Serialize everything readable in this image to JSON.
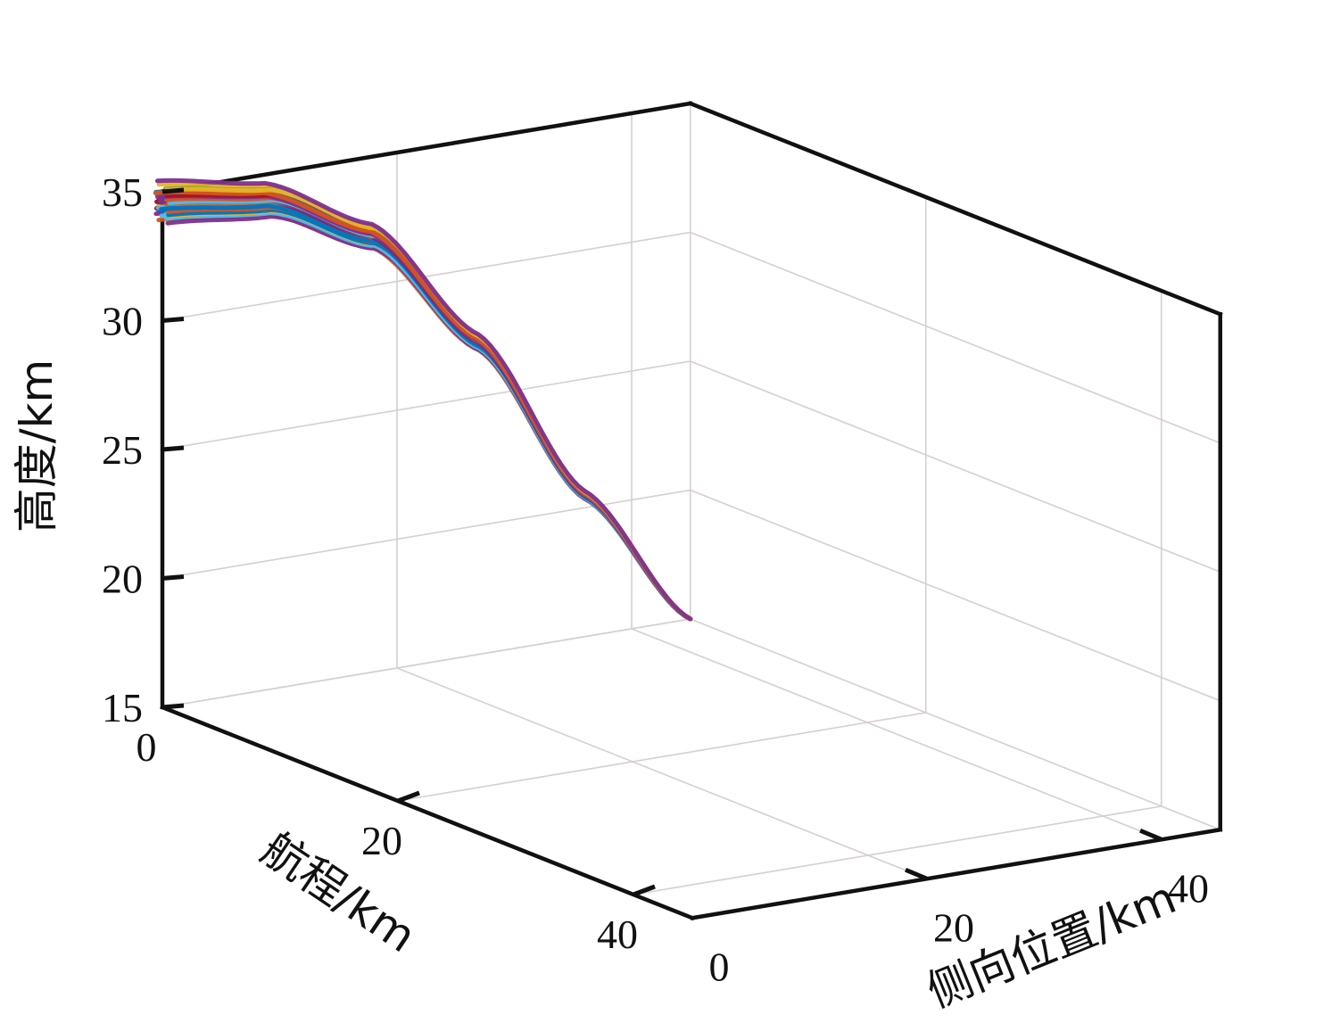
{
  "chart_data": {
    "type": "line",
    "projection": "3d",
    "title": "",
    "xlabel": "航程/km",
    "ylabel": "侧向位置/km",
    "zlabel": "高度/km",
    "xlim": [
      0,
      45
    ],
    "ylim": [
      0,
      45
    ],
    "zlim": [
      15,
      35
    ],
    "x_ticks": [
      "0",
      "20",
      "40"
    ],
    "y_ticks": [
      "0",
      "20",
      "40"
    ],
    "z_ticks": [
      "15",
      "20",
      "25",
      "30",
      "35"
    ],
    "grid": true,
    "box": true,
    "series_count": 60,
    "series_colors": [
      "#0072BD",
      "#D95319",
      "#EDB120",
      "#7E2F8E",
      "#77AC30",
      "#4DBEEE",
      "#A2142F"
    ],
    "trajectory_profile": [
      {
        "t": 0.0,
        "altitude": 34.6
      },
      {
        "t": 0.2,
        "altitude": 34.0
      },
      {
        "t": 0.4,
        "altitude": 31.9
      },
      {
        "t": 0.6,
        "altitude": 27.1
      },
      {
        "t": 0.8,
        "altitude": 20.5
      },
      {
        "t": 1.0,
        "altitude": 15.0
      }
    ],
    "start_spread_km": [
      -0.6,
      0.6
    ],
    "start_point": {
      "x": 0,
      "y": 0,
      "z": 34.6
    },
    "end_point": {
      "x": 0,
      "y": 45,
      "z": 15.0
    }
  }
}
